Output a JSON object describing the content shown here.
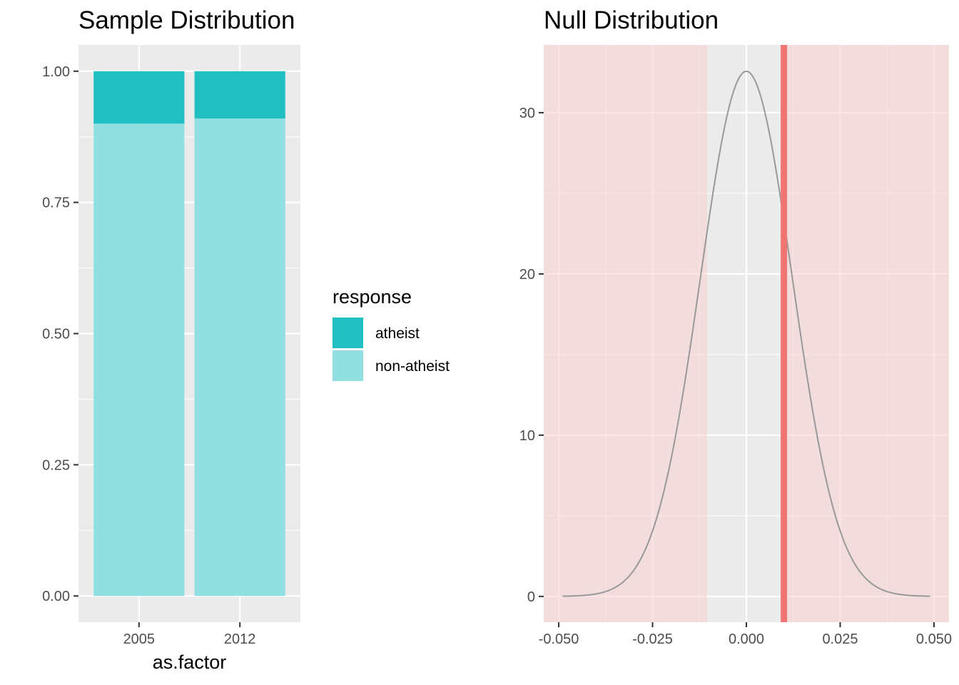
{
  "colors": {
    "panel_bg": "#ebebeb",
    "grid": "#ffffff",
    "atheist": "#20bfc2",
    "non_atheist": "#91dfe1",
    "density_line": "#999999",
    "observed_stat": "#f07571",
    "shade_fill": "#f7cfcf"
  },
  "chart_data": [
    {
      "type": "bar",
      "title": "Sample Distribution",
      "xlabel": "as.factor",
      "ylabel": "",
      "categories": [
        "2005",
        "2012"
      ],
      "series": [
        {
          "name": "non-atheist",
          "values": [
            0.9,
            0.91
          ]
        },
        {
          "name": "atheist",
          "values": [
            0.1,
            0.09
          ]
        }
      ],
      "stacked": true,
      "ylim": [
        -0.05,
        1.05
      ],
      "yticks": [
        "0.00",
        "0.25",
        "0.50",
        "0.75",
        "1.00"
      ],
      "legend": {
        "title": "response",
        "placement": "right",
        "entries": [
          "atheist",
          "non-atheist"
        ]
      },
      "grid": true
    },
    {
      "type": "line",
      "title": "Null Distribution",
      "xlabel": "",
      "ylabel": "",
      "distribution": {
        "mean": 0.0,
        "sd": 0.01225,
        "x_from": -0.049,
        "x_to": 0.049
      },
      "observed_stat": 0.01,
      "shaded_regions": [
        [
          -0.054,
          -0.0105
        ],
        [
          0.0105,
          0.054
        ]
      ],
      "xlim": [
        -0.054,
        0.054
      ],
      "ylim": [
        -1.6,
        34.2
      ],
      "xticks": [
        "-0.050",
        "-0.025",
        "0.000",
        "0.025",
        "0.050"
      ],
      "yticks": [
        "0",
        "10",
        "20",
        "30"
      ],
      "grid": true
    }
  ]
}
